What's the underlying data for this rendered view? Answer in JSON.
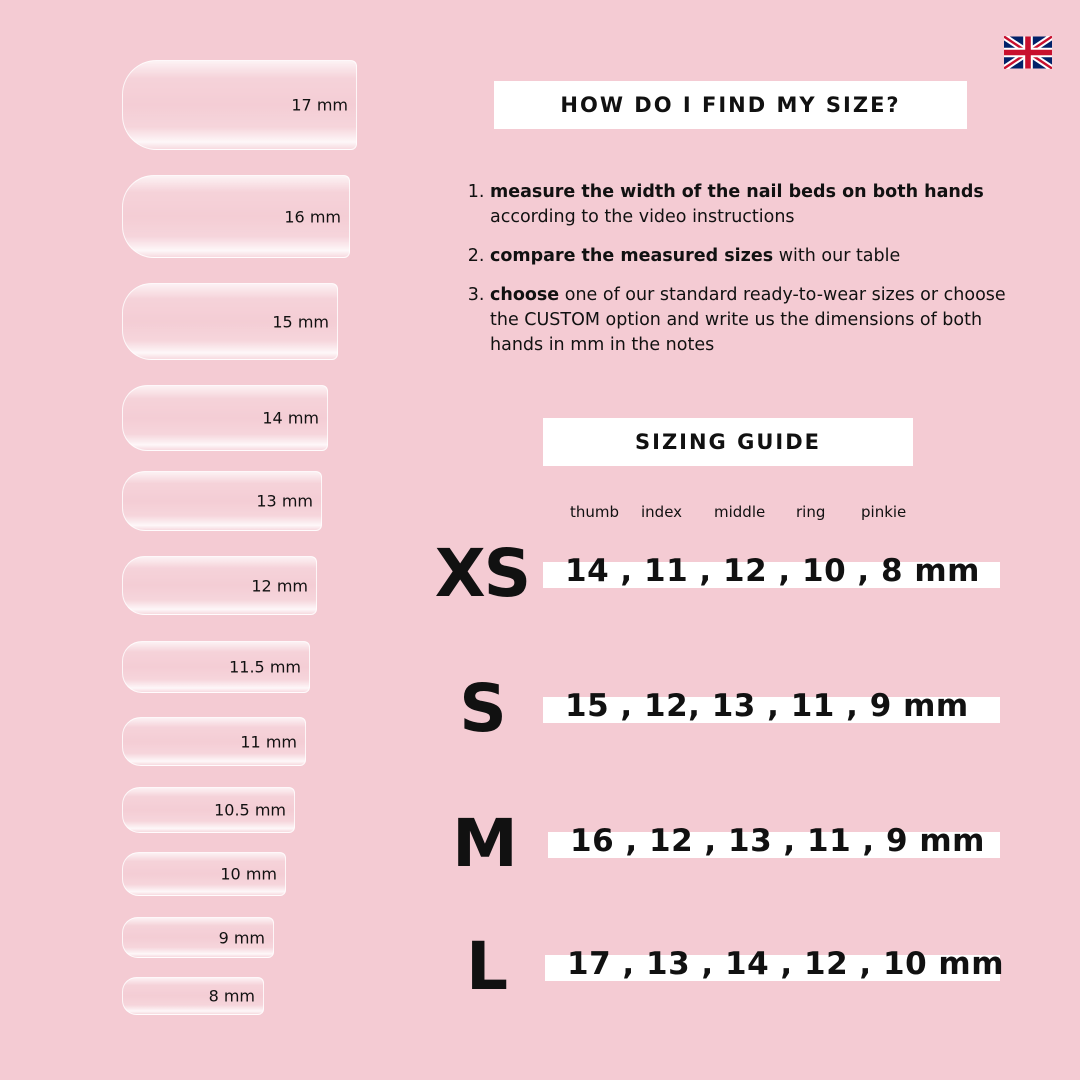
{
  "nails": [
    "17 mm",
    "16 mm",
    "15 mm",
    "14 mm",
    "13 mm",
    "12 mm",
    "11.5 mm",
    "11 mm",
    "10.5 mm",
    "10 mm",
    "9 mm",
    "8 mm"
  ],
  "flag_icon": "uk-flag-icon",
  "how_title": "HOW DO I FIND MY SIZE?",
  "steps": [
    {
      "bold": "measure the width of the nail beds on both hands",
      "rest": " according to the video instructions"
    },
    {
      "bold": "compare the measured sizes",
      "rest": " with our table"
    },
    {
      "bold": "choose",
      "rest": " one of our standard ready-to-wear sizes or choose the CUSTOM option and write us the dimensions of both hands in mm in the notes"
    }
  ],
  "guide_title": "SIZING GUIDE",
  "fingers": [
    "thumb",
    "index",
    "middle",
    "ring",
    "pinkie"
  ],
  "sizes": [
    {
      "label": "XS",
      "values": "14 , 11 , 12 , 10 , 8 mm"
    },
    {
      "label": "S",
      "values": "15 , 12, 13 , 11 , 9 mm"
    },
    {
      "label": "M",
      "values": "16 , 12 , 13 , 11 , 9 mm"
    },
    {
      "label": "L",
      "values": "17 , 13 , 14 , 12 , 10 mm"
    }
  ],
  "colors": {
    "background": "#f4cbd3",
    "box": "#ffffff",
    "text": "#111111"
  }
}
